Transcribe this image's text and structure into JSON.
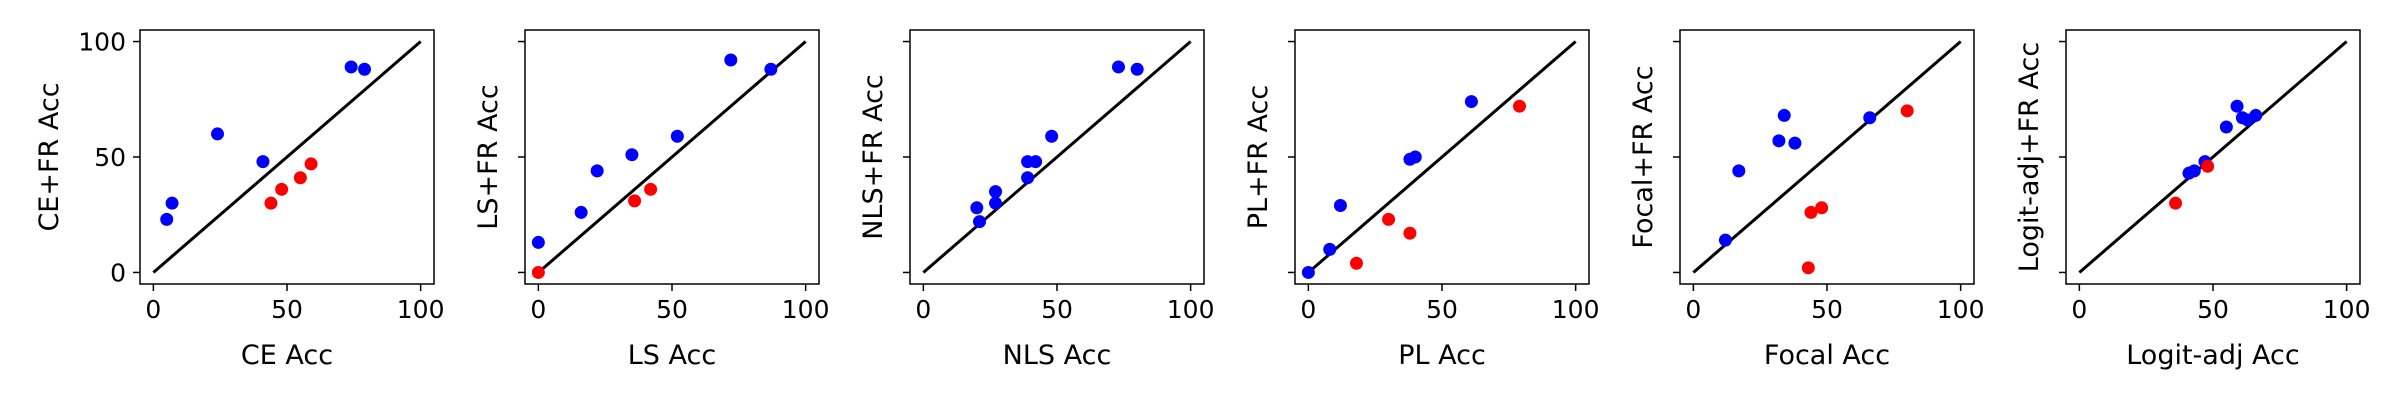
{
  "colors": {
    "above": "#0000ff",
    "below": "#ff0000",
    "diagonal": "#000000",
    "axes": "#000000"
  },
  "chart_data": [
    {
      "type": "scatter",
      "xlabel": "CE Acc",
      "ylabel": "CE+FR Acc",
      "xlim": [
        -5,
        105
      ],
      "ylim": [
        -5,
        105
      ],
      "xticks": [
        0,
        50,
        100
      ],
      "yticks": [
        0,
        50,
        100
      ],
      "show_ytick_labels": true,
      "diagonal": true,
      "points": [
        {
          "x": 5,
          "y": 23,
          "c": "above"
        },
        {
          "x": 7,
          "y": 30,
          "c": "above"
        },
        {
          "x": 24,
          "y": 60,
          "c": "above"
        },
        {
          "x": 41,
          "y": 48,
          "c": "above"
        },
        {
          "x": 74,
          "y": 89,
          "c": "above"
        },
        {
          "x": 79,
          "y": 88,
          "c": "above"
        },
        {
          "x": 44,
          "y": 30,
          "c": "below"
        },
        {
          "x": 48,
          "y": 36,
          "c": "below"
        },
        {
          "x": 55,
          "y": 41,
          "c": "below"
        },
        {
          "x": 59,
          "y": 47,
          "c": "below"
        }
      ]
    },
    {
      "type": "scatter",
      "xlabel": "LS Acc",
      "ylabel": "LS+FR Acc",
      "xlim": [
        -5,
        105
      ],
      "ylim": [
        -5,
        105
      ],
      "xticks": [
        0,
        50,
        100
      ],
      "yticks": [
        0,
        50,
        100
      ],
      "show_ytick_labels": false,
      "diagonal": true,
      "points": [
        {
          "x": 0,
          "y": 13,
          "c": "above"
        },
        {
          "x": 16,
          "y": 26,
          "c": "above"
        },
        {
          "x": 22,
          "y": 44,
          "c": "above"
        },
        {
          "x": 35,
          "y": 51,
          "c": "above"
        },
        {
          "x": 52,
          "y": 59,
          "c": "above"
        },
        {
          "x": 72,
          "y": 92,
          "c": "above"
        },
        {
          "x": 87,
          "y": 88,
          "c": "above"
        },
        {
          "x": 0,
          "y": 0,
          "c": "below"
        },
        {
          "x": 36,
          "y": 31,
          "c": "below"
        },
        {
          "x": 42,
          "y": 36,
          "c": "below"
        }
      ]
    },
    {
      "type": "scatter",
      "xlabel": "NLS Acc",
      "ylabel": "NLS+FR Acc",
      "xlim": [
        -5,
        105
      ],
      "ylim": [
        -5,
        105
      ],
      "xticks": [
        0,
        50,
        100
      ],
      "yticks": [
        0,
        50,
        100
      ],
      "show_ytick_labels": false,
      "diagonal": true,
      "points": [
        {
          "x": 21,
          "y": 22,
          "c": "above"
        },
        {
          "x": 20,
          "y": 28,
          "c": "above"
        },
        {
          "x": 27,
          "y": 30,
          "c": "above"
        },
        {
          "x": 27,
          "y": 35,
          "c": "above"
        },
        {
          "x": 39,
          "y": 41,
          "c": "above"
        },
        {
          "x": 39,
          "y": 48,
          "c": "above"
        },
        {
          "x": 42,
          "y": 48,
          "c": "above"
        },
        {
          "x": 48,
          "y": 59,
          "c": "above"
        },
        {
          "x": 73,
          "y": 89,
          "c": "above"
        },
        {
          "x": 80,
          "y": 88,
          "c": "above"
        }
      ]
    },
    {
      "type": "scatter",
      "xlabel": "PL Acc",
      "ylabel": "PL+FR Acc",
      "xlim": [
        -5,
        105
      ],
      "ylim": [
        -5,
        105
      ],
      "xticks": [
        0,
        50,
        100
      ],
      "yticks": [
        0,
        50,
        100
      ],
      "show_ytick_labels": false,
      "diagonal": true,
      "points": [
        {
          "x": 0,
          "y": 0,
          "c": "above"
        },
        {
          "x": 8,
          "y": 10,
          "c": "above"
        },
        {
          "x": 12,
          "y": 29,
          "c": "above"
        },
        {
          "x": 38,
          "y": 49,
          "c": "above"
        },
        {
          "x": 40,
          "y": 50,
          "c": "above"
        },
        {
          "x": 61,
          "y": 74,
          "c": "above"
        },
        {
          "x": 18,
          "y": 4,
          "c": "below"
        },
        {
          "x": 30,
          "y": 23,
          "c": "below"
        },
        {
          "x": 38,
          "y": 17,
          "c": "below"
        },
        {
          "x": 79,
          "y": 72,
          "c": "below"
        }
      ]
    },
    {
      "type": "scatter",
      "xlabel": "Focal Acc",
      "ylabel": "Focal+FR Acc",
      "xlim": [
        -5,
        105
      ],
      "ylim": [
        -5,
        105
      ],
      "xticks": [
        0,
        50,
        100
      ],
      "yticks": [
        0,
        50,
        100
      ],
      "show_ytick_labels": false,
      "diagonal": true,
      "points": [
        {
          "x": 12,
          "y": 14,
          "c": "above"
        },
        {
          "x": 17,
          "y": 44,
          "c": "above"
        },
        {
          "x": 32,
          "y": 57,
          "c": "above"
        },
        {
          "x": 34,
          "y": 68,
          "c": "above"
        },
        {
          "x": 38,
          "y": 56,
          "c": "above"
        },
        {
          "x": 66,
          "y": 67,
          "c": "above"
        },
        {
          "x": 43,
          "y": 2,
          "c": "below"
        },
        {
          "x": 44,
          "y": 26,
          "c": "below"
        },
        {
          "x": 48,
          "y": 28,
          "c": "below"
        },
        {
          "x": 80,
          "y": 70,
          "c": "below"
        }
      ]
    },
    {
      "type": "scatter",
      "xlabel": "Logit-adj Acc",
      "ylabel": "Logit-adj+FR Acc",
      "xlim": [
        -5,
        105
      ],
      "ylim": [
        -5,
        105
      ],
      "xticks": [
        0,
        50,
        100
      ],
      "yticks": [
        0,
        50,
        100
      ],
      "show_ytick_labels": false,
      "diagonal": true,
      "points": [
        {
          "x": 41,
          "y": 43,
          "c": "above"
        },
        {
          "x": 43,
          "y": 44,
          "c": "above"
        },
        {
          "x": 47,
          "y": 48,
          "c": "above"
        },
        {
          "x": 55,
          "y": 63,
          "c": "above"
        },
        {
          "x": 59,
          "y": 72,
          "c": "above"
        },
        {
          "x": 61,
          "y": 67,
          "c": "above"
        },
        {
          "x": 63,
          "y": 66,
          "c": "above"
        },
        {
          "x": 66,
          "y": 68,
          "c": "above"
        },
        {
          "x": 36,
          "y": 30,
          "c": "below"
        },
        {
          "x": 48,
          "y": 46,
          "c": "below"
        }
      ]
    }
  ]
}
